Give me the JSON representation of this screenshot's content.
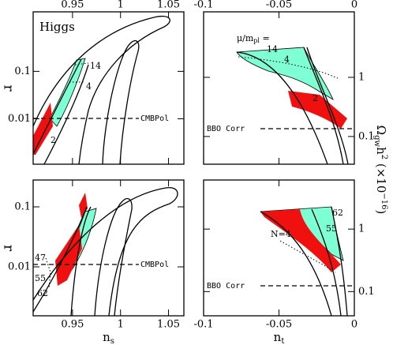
{
  "chart_data": [
    {
      "type": "contour",
      "log_y": true,
      "x_tick_side": "top",
      "y_tick_side": "left",
      "xlim": [
        0.909,
        1.066
      ],
      "ylim": [
        0.0011,
        1.8
      ],
      "xticks": [
        0.95,
        1,
        1.05
      ],
      "yticks": [
        0.01,
        0.1
      ],
      "y_label": "r",
      "annotations": [
        "Higgs",
        "14",
        "4",
        "2",
        "CMBPol"
      ]
    },
    {
      "type": "contour",
      "log_y": true,
      "x_tick_side": "top",
      "y_tick_side": "right",
      "xlim": [
        -0.1,
        0
      ],
      "ylim": [
        0.034,
        12.8
      ],
      "xticks": [
        -0.1,
        -0.05,
        0
      ],
      "yticks": [
        0.1,
        1
      ],
      "annotations": [
        {
          "base": "μ/m",
          "sub": "pl",
          "tail": " ="
        },
        "14",
        "4",
        "2",
        "BBO Corr"
      ]
    },
    {
      "type": "contour",
      "log_y": true,
      "x_tick_side": "bottom",
      "y_tick_side": "left",
      "xlim": [
        0.909,
        1.066
      ],
      "ylim": [
        0.00153,
        0.28
      ],
      "xticks": [
        0.95,
        1,
        1.05
      ],
      "yticks": [
        0.01,
        0.1
      ],
      "y_label": "r",
      "x_label": {
        "base": "n",
        "sub": "s"
      },
      "annotations": [
        "47",
        "55",
        "62",
        "CMBPol"
      ]
    },
    {
      "type": "contour",
      "log_y": true,
      "x_tick_side": "bottom",
      "y_tick_side": "right",
      "xlim": [
        -0.1,
        0
      ],
      "ylim": [
        0.041,
        6.1
      ],
      "xticks": [
        -0.1,
        -0.05,
        0
      ],
      "yticks": [
        0.1,
        1
      ],
      "x_label": {
        "base": "n",
        "sub": "t"
      },
      "annotations": [
        "62",
        "55",
        "N=4",
        "BBO Corr"
      ]
    }
  ],
  "figure": {
    "right_label": {
      "omega": "Ω",
      "sub": "gw",
      "h": "h",
      "sup": "2",
      "unit": " (×10",
      "exp": "−16",
      "close": ")"
    }
  }
}
